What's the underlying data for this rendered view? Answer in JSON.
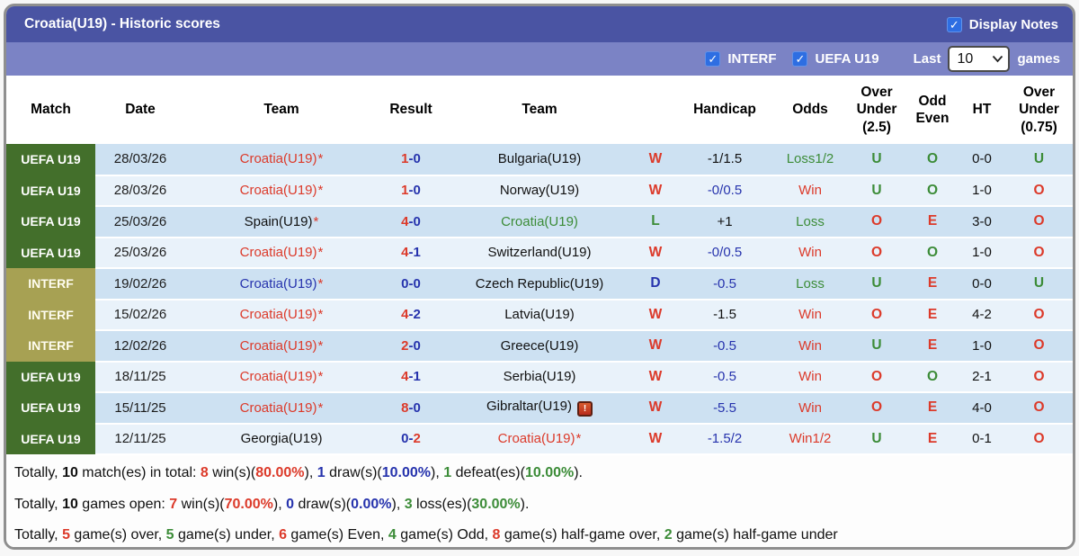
{
  "colors": {
    "red": "#dc3a2a",
    "blue": "#2633ad",
    "green": "#3c8c38",
    "black": "#111111",
    "title_bar": "#4a54a3",
    "filter_bar": "#7b83c5",
    "uefa_badge_bg": "#436f2b",
    "interf_badge_bg": "#a7a153",
    "row_stripe_dark": "#cde1f2",
    "row_stripe_light": "#e9f2fa",
    "checkbox_blue": "#2e6ee2"
  },
  "title_bar": {
    "title": "Croatia(U19) - Historic scores",
    "display_notes_label": "Display Notes",
    "display_notes_checked": true
  },
  "filter_bar": {
    "filters": [
      {
        "label": "INTERF",
        "checked": true
      },
      {
        "label": "UEFA U19",
        "checked": true
      }
    ],
    "last_label": "Last",
    "last_value": "10",
    "games_label": "games"
  },
  "table": {
    "star_glyph": "*",
    "note_glyph": "!",
    "result_separator": "-",
    "headers": [
      {
        "label": "Match"
      },
      {
        "label": "Date"
      },
      {
        "label": "Team"
      },
      {
        "label": "Result"
      },
      {
        "label": "Team"
      },
      {
        "label": ""
      },
      {
        "label": "Handicap"
      },
      {
        "label": "Odds"
      },
      {
        "label": "Over\nUnder\n(2.5)"
      },
      {
        "label": "Odd\nEven"
      },
      {
        "label": "HT"
      },
      {
        "label": "Over\nUnder\n(0.75)"
      }
    ],
    "rows": [
      {
        "comp": {
          "label": "UEFA U19",
          "type": "uefa"
        },
        "date": "28/03/26",
        "team1": {
          "name": "Croatia(U19)",
          "color": "red",
          "star": true
        },
        "result": {
          "home": "1",
          "away": "0",
          "home_color": "red",
          "away_color": "blue"
        },
        "team2": {
          "name": "Bulgaria(U19)",
          "color": "black",
          "star": false,
          "note": false
        },
        "wdl": {
          "text": "W",
          "color": "red"
        },
        "handicap": {
          "text": "-1/1.5",
          "color": "black"
        },
        "odds": {
          "text": "Loss1/2",
          "color": "green"
        },
        "ou25": {
          "text": "U",
          "color": "green"
        },
        "oddeven": {
          "text": "O",
          "color": "green"
        },
        "ht": "0-0",
        "ou075": {
          "text": "U",
          "color": "green"
        }
      },
      {
        "comp": {
          "label": "UEFA U19",
          "type": "uefa"
        },
        "date": "28/03/26",
        "team1": {
          "name": "Croatia(U19)",
          "color": "red",
          "star": true
        },
        "result": {
          "home": "1",
          "away": "0",
          "home_color": "red",
          "away_color": "blue"
        },
        "team2": {
          "name": "Norway(U19)",
          "color": "black",
          "star": false,
          "note": false
        },
        "wdl": {
          "text": "W",
          "color": "red"
        },
        "handicap": {
          "text": "-0/0.5",
          "color": "blue"
        },
        "odds": {
          "text": "Win",
          "color": "red"
        },
        "ou25": {
          "text": "U",
          "color": "green"
        },
        "oddeven": {
          "text": "O",
          "color": "green"
        },
        "ht": "1-0",
        "ou075": {
          "text": "O",
          "color": "red"
        }
      },
      {
        "comp": {
          "label": "UEFA U19",
          "type": "uefa"
        },
        "date": "25/03/26",
        "team1": {
          "name": "Spain(U19)",
          "color": "black",
          "star": true
        },
        "result": {
          "home": "4",
          "away": "0",
          "home_color": "red",
          "away_color": "blue"
        },
        "team2": {
          "name": "Croatia(U19)",
          "color": "green",
          "star": false,
          "note": false
        },
        "wdl": {
          "text": "L",
          "color": "green"
        },
        "handicap": {
          "text": "+1",
          "color": "black"
        },
        "odds": {
          "text": "Loss",
          "color": "green"
        },
        "ou25": {
          "text": "O",
          "color": "red"
        },
        "oddeven": {
          "text": "E",
          "color": "red"
        },
        "ht": "3-0",
        "ou075": {
          "text": "O",
          "color": "red"
        }
      },
      {
        "comp": {
          "label": "UEFA U19",
          "type": "uefa"
        },
        "date": "25/03/26",
        "team1": {
          "name": "Croatia(U19)",
          "color": "red",
          "star": true
        },
        "result": {
          "home": "4",
          "away": "1",
          "home_color": "red",
          "away_color": "blue"
        },
        "team2": {
          "name": "Switzerland(U19)",
          "color": "black",
          "star": false,
          "note": false
        },
        "wdl": {
          "text": "W",
          "color": "red"
        },
        "handicap": {
          "text": "-0/0.5",
          "color": "blue"
        },
        "odds": {
          "text": "Win",
          "color": "red"
        },
        "ou25": {
          "text": "O",
          "color": "red"
        },
        "oddeven": {
          "text": "O",
          "color": "green"
        },
        "ht": "1-0",
        "ou075": {
          "text": "O",
          "color": "red"
        }
      },
      {
        "comp": {
          "label": "INTERF",
          "type": "interf"
        },
        "date": "19/02/26",
        "team1": {
          "name": "Croatia(U19)",
          "color": "blue",
          "star": true
        },
        "result": {
          "home": "0",
          "away": "0",
          "home_color": "blue",
          "away_color": "blue"
        },
        "team2": {
          "name": "Czech Republic(U19)",
          "color": "black",
          "star": false,
          "note": false
        },
        "wdl": {
          "text": "D",
          "color": "blue"
        },
        "handicap": {
          "text": "-0.5",
          "color": "blue"
        },
        "odds": {
          "text": "Loss",
          "color": "green"
        },
        "ou25": {
          "text": "U",
          "color": "green"
        },
        "oddeven": {
          "text": "E",
          "color": "red"
        },
        "ht": "0-0",
        "ou075": {
          "text": "U",
          "color": "green"
        }
      },
      {
        "comp": {
          "label": "INTERF",
          "type": "interf"
        },
        "date": "15/02/26",
        "team1": {
          "name": "Croatia(U19)",
          "color": "red",
          "star": true
        },
        "result": {
          "home": "4",
          "away": "2",
          "home_color": "red",
          "away_color": "blue"
        },
        "team2": {
          "name": "Latvia(U19)",
          "color": "black",
          "star": false,
          "note": false
        },
        "wdl": {
          "text": "W",
          "color": "red"
        },
        "handicap": {
          "text": "-1.5",
          "color": "black"
        },
        "odds": {
          "text": "Win",
          "color": "red"
        },
        "ou25": {
          "text": "O",
          "color": "red"
        },
        "oddeven": {
          "text": "E",
          "color": "red"
        },
        "ht": "4-2",
        "ou075": {
          "text": "O",
          "color": "red"
        }
      },
      {
        "comp": {
          "label": "INTERF",
          "type": "interf"
        },
        "date": "12/02/26",
        "team1": {
          "name": "Croatia(U19)",
          "color": "red",
          "star": true
        },
        "result": {
          "home": "2",
          "away": "0",
          "home_color": "red",
          "away_color": "blue"
        },
        "team2": {
          "name": "Greece(U19)",
          "color": "black",
          "star": false,
          "note": false
        },
        "wdl": {
          "text": "W",
          "color": "red"
        },
        "handicap": {
          "text": "-0.5",
          "color": "blue"
        },
        "odds": {
          "text": "Win",
          "color": "red"
        },
        "ou25": {
          "text": "U",
          "color": "green"
        },
        "oddeven": {
          "text": "E",
          "color": "red"
        },
        "ht": "1-0",
        "ou075": {
          "text": "O",
          "color": "red"
        }
      },
      {
        "comp": {
          "label": "UEFA U19",
          "type": "uefa"
        },
        "date": "18/11/25",
        "team1": {
          "name": "Croatia(U19)",
          "color": "red",
          "star": true
        },
        "result": {
          "home": "4",
          "away": "1",
          "home_color": "red",
          "away_color": "blue"
        },
        "team2": {
          "name": "Serbia(U19)",
          "color": "black",
          "star": false,
          "note": false
        },
        "wdl": {
          "text": "W",
          "color": "red"
        },
        "handicap": {
          "text": "-0.5",
          "color": "blue"
        },
        "odds": {
          "text": "Win",
          "color": "red"
        },
        "ou25": {
          "text": "O",
          "color": "red"
        },
        "oddeven": {
          "text": "O",
          "color": "green"
        },
        "ht": "2-1",
        "ou075": {
          "text": "O",
          "color": "red"
        }
      },
      {
        "comp": {
          "label": "UEFA U19",
          "type": "uefa"
        },
        "date": "15/11/25",
        "team1": {
          "name": "Croatia(U19)",
          "color": "red",
          "star": true
        },
        "result": {
          "home": "8",
          "away": "0",
          "home_color": "red",
          "away_color": "blue"
        },
        "team2": {
          "name": "Gibraltar(U19)",
          "color": "black",
          "star": false,
          "note": true
        },
        "wdl": {
          "text": "W",
          "color": "red"
        },
        "handicap": {
          "text": "-5.5",
          "color": "blue"
        },
        "odds": {
          "text": "Win",
          "color": "red"
        },
        "ou25": {
          "text": "O",
          "color": "red"
        },
        "oddeven": {
          "text": "E",
          "color": "red"
        },
        "ht": "4-0",
        "ou075": {
          "text": "O",
          "color": "red"
        }
      },
      {
        "comp": {
          "label": "UEFA U19",
          "type": "uefa"
        },
        "date": "12/11/25",
        "team1": {
          "name": "Georgia(U19)",
          "color": "black",
          "star": false
        },
        "result": {
          "home": "0",
          "away": "2",
          "home_color": "blue",
          "away_color": "red"
        },
        "team2": {
          "name": "Croatia(U19)",
          "color": "red",
          "star": true,
          "note": false
        },
        "wdl": {
          "text": "W",
          "color": "red"
        },
        "handicap": {
          "text": "-1.5/2",
          "color": "blue"
        },
        "odds": {
          "text": "Win1/2",
          "color": "red"
        },
        "ou25": {
          "text": "U",
          "color": "green"
        },
        "oddeven": {
          "text": "E",
          "color": "red"
        },
        "ht": "0-1",
        "ou075": {
          "text": "O",
          "color": "red"
        }
      }
    ]
  },
  "summary": {
    "lines": [
      {
        "segments": [
          {
            "text": "Totally, ",
            "color": "black"
          },
          {
            "text": "10",
            "color": "black",
            "bold": true
          },
          {
            "text": " match(es) in total: ",
            "color": "black"
          },
          {
            "text": "8",
            "color": "red",
            "bold": true
          },
          {
            "text": " win(s)(",
            "color": "black"
          },
          {
            "text": "80.00%",
            "color": "red",
            "bold": true
          },
          {
            "text": "), ",
            "color": "black"
          },
          {
            "text": "1",
            "color": "blue",
            "bold": true
          },
          {
            "text": " draw(s)(",
            "color": "black"
          },
          {
            "text": "10.00%",
            "color": "blue",
            "bold": true
          },
          {
            "text": "), ",
            "color": "black"
          },
          {
            "text": "1",
            "color": "green",
            "bold": true
          },
          {
            "text": " defeat(es)(",
            "color": "black"
          },
          {
            "text": "10.00%",
            "color": "green",
            "bold": true
          },
          {
            "text": ").",
            "color": "black"
          }
        ]
      },
      {
        "segments": [
          {
            "text": "Totally, ",
            "color": "black"
          },
          {
            "text": "10",
            "color": "black",
            "bold": true
          },
          {
            "text": " games open: ",
            "color": "black"
          },
          {
            "text": "7",
            "color": "red",
            "bold": true
          },
          {
            "text": " win(s)(",
            "color": "black"
          },
          {
            "text": "70.00%",
            "color": "red",
            "bold": true
          },
          {
            "text": "), ",
            "color": "black"
          },
          {
            "text": "0",
            "color": "blue",
            "bold": true
          },
          {
            "text": " draw(s)(",
            "color": "black"
          },
          {
            "text": "0.00%",
            "color": "blue",
            "bold": true
          },
          {
            "text": "), ",
            "color": "black"
          },
          {
            "text": "3",
            "color": "green",
            "bold": true
          },
          {
            "text": " loss(es)(",
            "color": "black"
          },
          {
            "text": "30.00%",
            "color": "green",
            "bold": true
          },
          {
            "text": ").",
            "color": "black"
          }
        ]
      },
      {
        "segments": [
          {
            "text": "Totally, ",
            "color": "black"
          },
          {
            "text": "5",
            "color": "red",
            "bold": true
          },
          {
            "text": " game(s) over, ",
            "color": "black"
          },
          {
            "text": "5",
            "color": "green",
            "bold": true
          },
          {
            "text": " game(s) under, ",
            "color": "black"
          },
          {
            "text": "6",
            "color": "red",
            "bold": true
          },
          {
            "text": " game(s) Even, ",
            "color": "black"
          },
          {
            "text": "4",
            "color": "green",
            "bold": true
          },
          {
            "text": " game(s) Odd, ",
            "color": "black"
          },
          {
            "text": "8",
            "color": "red",
            "bold": true
          },
          {
            "text": " game(s) half-game over, ",
            "color": "black"
          },
          {
            "text": "2",
            "color": "green",
            "bold": true
          },
          {
            "text": " game(s) half-game under",
            "color": "black"
          }
        ]
      }
    ]
  }
}
